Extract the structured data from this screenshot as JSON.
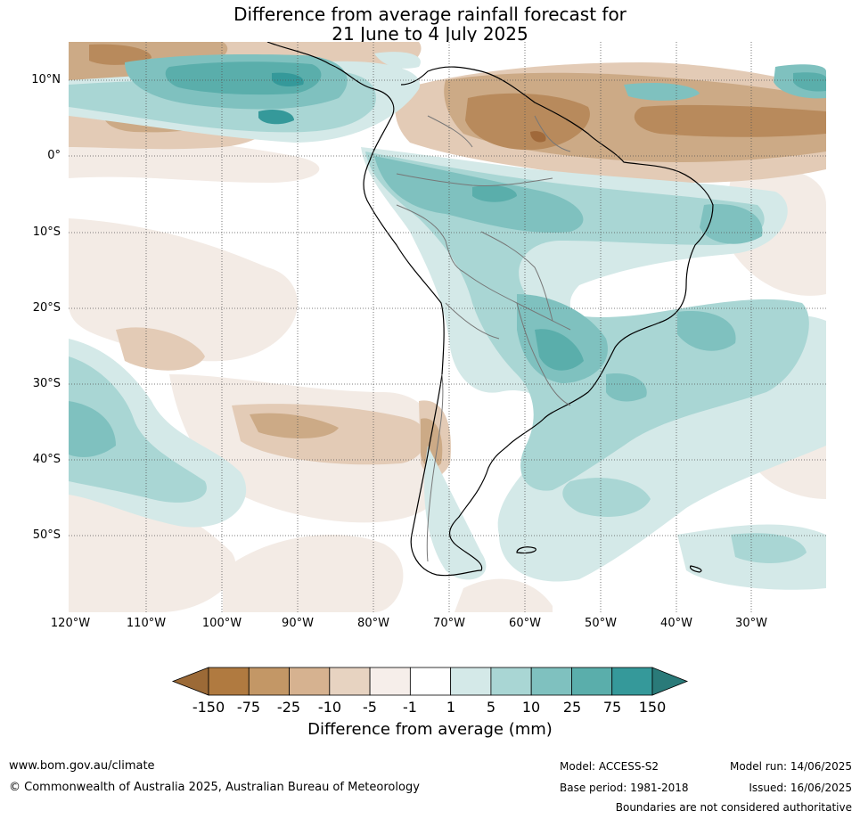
{
  "title": {
    "line1": "Difference from average rainfall forecast for",
    "line2": "21 June to 4 July 2025"
  },
  "map": {
    "region": "South America",
    "lat_labels": [
      "10°N",
      "0°",
      "10°S",
      "20°S",
      "30°S",
      "40°S",
      "50°S"
    ],
    "lon_labels": [
      "120°W",
      "110°W",
      "100°W",
      "90°W",
      "80°W",
      "70°W",
      "60°W",
      "50°W",
      "40°W",
      "30°W"
    ]
  },
  "colorbar": {
    "title": "Difference from average (mm)",
    "tick_labels": [
      "-150",
      "-75",
      "-25",
      "-10",
      "-5",
      "-1",
      "1",
      "5",
      "10",
      "25",
      "75",
      "150"
    ],
    "colors": [
      "#9c6a37",
      "#b07a40",
      "#c39766",
      "#d6b290",
      "#e7d3c1",
      "#f6eeea",
      "#ffffff",
      "#d4e9e8",
      "#a9d6d4",
      "#7fc1bf",
      "#5aaeab",
      "#35999a",
      "#2a7a79"
    ]
  },
  "footer": {
    "website": "www.bom.gov.au/climate",
    "copyright": "© Commonwealth of Australia 2025, Australian Bureau of Meteorology",
    "model": "Model: ACCESS-S2",
    "base_period": "Base period: 1981-2018",
    "model_run": "Model run: 14/06/2025",
    "issued": "Issued: 16/06/2025",
    "disclaimer": "Boundaries are not considered authoritative"
  }
}
